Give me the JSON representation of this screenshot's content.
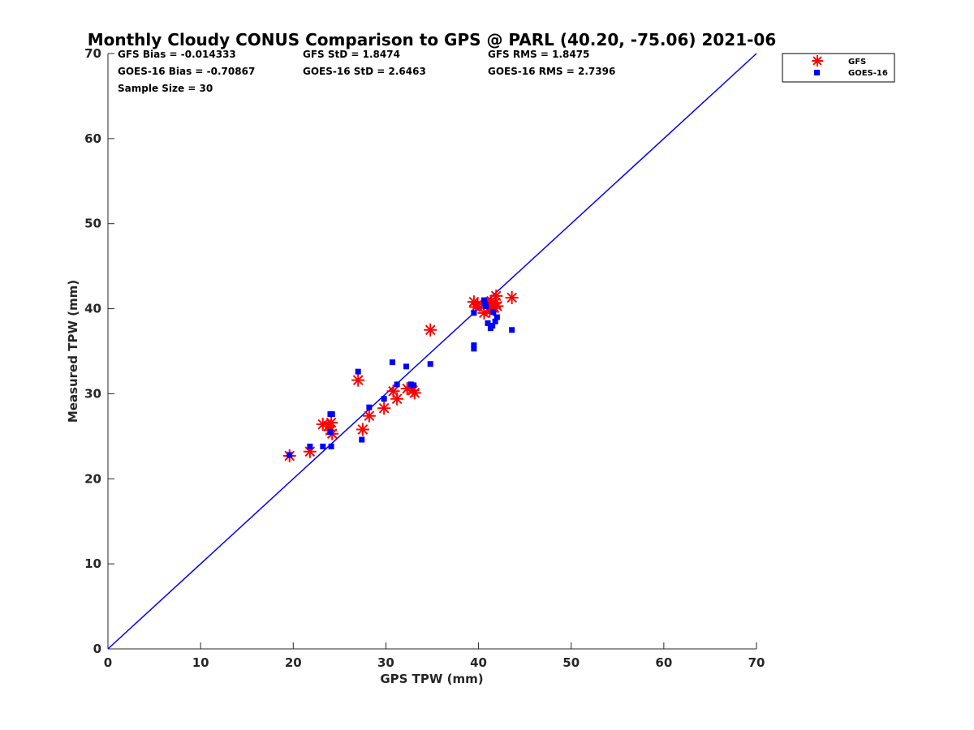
{
  "chart_data": {
    "type": "scatter",
    "title": "Monthly Cloudy CONUS Comparison to GPS @ PARL (40.20, -75.06) 2021-06",
    "xlabel": "GPS TPW (mm)",
    "ylabel": "Measured TPW (mm)",
    "xlim": [
      0,
      70
    ],
    "ylim": [
      0,
      70
    ],
    "xticks": [
      "0",
      "10",
      "20",
      "30",
      "40",
      "50",
      "60",
      "70"
    ],
    "yticks": [
      "0",
      "10",
      "20",
      "30",
      "40",
      "50",
      "60",
      "70"
    ],
    "grid": false,
    "legend_position": "outside-top-right",
    "stats": [
      "GFS Bias = -0.014333",
      "GFS StD = 1.8474",
      "GFS RMS = 1.8475",
      "GOES-16 Bias = -0.70867",
      "GOES-16 StD = 2.6463",
      "GOES-16 RMS = 2.7396",
      "Sample Size = 30"
    ],
    "reference_line": {
      "x": [
        0,
        70
      ],
      "y": [
        0,
        70
      ],
      "color": "#0000ff"
    },
    "series": [
      {
        "name": "GFS",
        "marker": "asterisk",
        "color": "#ff0000",
        "points": [
          [
            19.6,
            22.7
          ],
          [
            21.8,
            23.2
          ],
          [
            23.2,
            26.4
          ],
          [
            23.8,
            26.2
          ],
          [
            24.1,
            26.6
          ],
          [
            24.0,
            25.7
          ],
          [
            24.2,
            25.3
          ],
          [
            27.0,
            31.6
          ],
          [
            27.5,
            25.8
          ],
          [
            28.2,
            27.4
          ],
          [
            29.8,
            28.3
          ],
          [
            30.8,
            30.3
          ],
          [
            31.2,
            29.4
          ],
          [
            32.3,
            30.6
          ],
          [
            32.9,
            30.4
          ],
          [
            33.1,
            30.1
          ],
          [
            34.8,
            37.5
          ],
          [
            39.5,
            40.8
          ],
          [
            39.7,
            40.2
          ],
          [
            40.6,
            39.5
          ],
          [
            41.0,
            40.4
          ],
          [
            41.4,
            40.9
          ],
          [
            41.7,
            40.1
          ],
          [
            41.8,
            40.7
          ],
          [
            41.9,
            41.5
          ],
          [
            43.6,
            41.3
          ],
          [
            40.9,
            40.6
          ],
          [
            41.2,
            39.7
          ],
          [
            39.9,
            40.5
          ],
          [
            42.0,
            40.3
          ]
        ]
      },
      {
        "name": "GOES-16",
        "marker": "square",
        "color": "#0000ff",
        "points": [
          [
            19.6,
            22.8
          ],
          [
            21.8,
            23.8
          ],
          [
            23.2,
            23.8
          ],
          [
            24.0,
            25.5
          ],
          [
            24.0,
            27.6
          ],
          [
            24.2,
            27.6
          ],
          [
            24.1,
            23.8
          ],
          [
            27.0,
            32.6
          ],
          [
            27.4,
            24.6
          ],
          [
            28.2,
            28.4
          ],
          [
            29.8,
            29.4
          ],
          [
            30.7,
            33.7
          ],
          [
            31.2,
            31.1
          ],
          [
            32.2,
            33.2
          ],
          [
            32.7,
            31.1
          ],
          [
            33.0,
            31.0
          ],
          [
            34.8,
            33.5
          ],
          [
            39.5,
            39.5
          ],
          [
            39.5,
            35.7
          ],
          [
            39.5,
            35.3
          ],
          [
            40.6,
            41.0
          ],
          [
            40.8,
            40.3
          ],
          [
            41.0,
            38.3
          ],
          [
            41.3,
            37.7
          ],
          [
            41.5,
            38.0
          ],
          [
            41.6,
            39.6
          ],
          [
            41.8,
            38.5
          ],
          [
            42.0,
            39.0
          ],
          [
            43.6,
            37.5
          ],
          [
            40.7,
            40.6
          ]
        ]
      }
    ]
  }
}
